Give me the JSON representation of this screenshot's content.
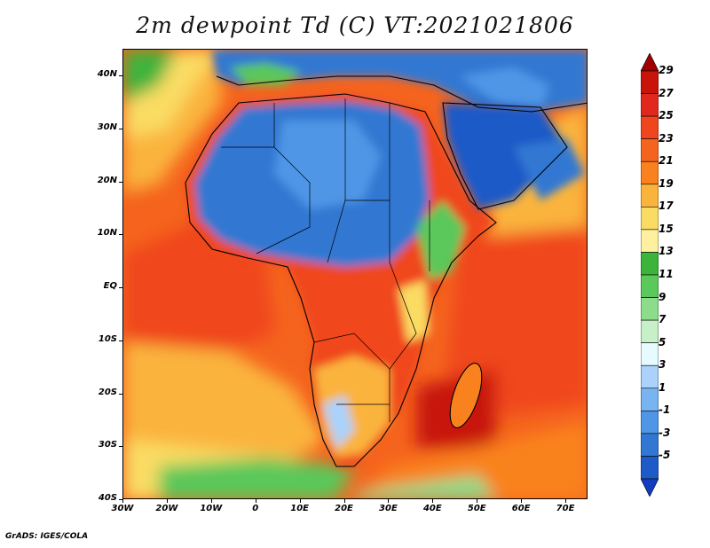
{
  "title": "2m dewpoint Td (C) VT:2021021806",
  "credit": "GrADS: IGES/COLA",
  "map": {
    "x_axis_labels": [
      "30W",
      "20W",
      "10W",
      "0",
      "10E",
      "20E",
      "30E",
      "40E",
      "50E",
      "60E",
      "70E"
    ],
    "y_axis_labels": [
      "40N",
      "30N",
      "20N",
      "10N",
      "EQ",
      "10S",
      "20S",
      "30S",
      "40S"
    ]
  },
  "colorbar": {
    "labels": [
      "29",
      "27",
      "25",
      "23",
      "21",
      "19",
      "17",
      "15",
      "13",
      "11",
      "9",
      "7",
      "5",
      "3",
      "1",
      "-1",
      "-3",
      "-5"
    ],
    "colors": [
      "#a00000",
      "#c8140a",
      "#e1281e",
      "#f0461e",
      "#f5641e",
      "#fa821e",
      "#fab43c",
      "#fadc64",
      "#fff0a0",
      "#3cb43c",
      "#5ac85a",
      "#8cdc8c",
      "#c8f0c8",
      "#e6faff",
      "#aad2fa",
      "#78b4f0",
      "#5096e6",
      "#3278d2",
      "#1e5ac8",
      "#143cbe"
    ]
  }
}
